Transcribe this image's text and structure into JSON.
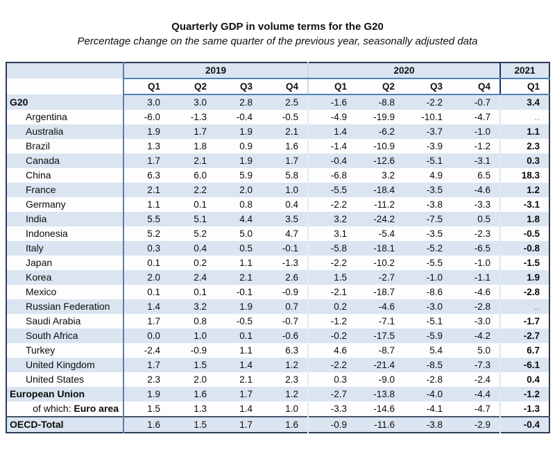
{
  "page": {
    "title": "Quarterly GDP in volume terms for the G20",
    "subtitle": "Percentage change on the same quarter of the previous year, seasonally adjusted data"
  },
  "colors": {
    "stripe_blue": "#dbe5f1",
    "stripe_white": "#fdfdfe",
    "header_line_blue": "#4f81bd",
    "outer_border": "#2b3a55",
    "year2021_separator": "#17375e",
    "total_rule": "#44546a",
    "text": "#0b0b0b",
    "missing_value_color": "#808080"
  },
  "chart_data": {
    "type": "table",
    "title": "Quarterly GDP in volume terms for the G20",
    "subtitle": "Percentage change on the same quarter of the previous year, seasonally adjusted data",
    "missing_symbol": "..",
    "column_groups": [
      {
        "year": "2019",
        "quarters": [
          "Q1",
          "Q2",
          "Q3",
          "Q4"
        ]
      },
      {
        "year": "2020",
        "quarters": [
          "Q1",
          "Q2",
          "Q3",
          "Q4"
        ]
      },
      {
        "year": "2021",
        "quarters": [
          "Q1"
        ]
      }
    ],
    "rows": [
      {
        "label": "G20",
        "emphasis": "bold",
        "values": [
          "3.0",
          "3.0",
          "2.8",
          "2.5",
          "-1.6",
          "-8.8",
          "-2.2",
          "-0.7",
          "3.4"
        ]
      },
      {
        "label": "Argentina",
        "emphasis": "normal",
        "values": [
          "-6.0",
          "-1.3",
          "-0.4",
          "-0.5",
          "-4.9",
          "-19.9",
          "-10.1",
          "-4.7",
          ".."
        ]
      },
      {
        "label": "Australia",
        "emphasis": "normal",
        "values": [
          "1.9",
          "1.7",
          "1.9",
          "2.1",
          "1.4",
          "-6.2",
          "-3.7",
          "-1.0",
          "1.1"
        ]
      },
      {
        "label": "Brazil",
        "emphasis": "normal",
        "values": [
          "1.3",
          "1.8",
          "0.9",
          "1.6",
          "-1.4",
          "-10.9",
          "-3.9",
          "-1.2",
          "2.3"
        ]
      },
      {
        "label": "Canada",
        "emphasis": "normal",
        "values": [
          "1.7",
          "2.1",
          "1.9",
          "1.7",
          "-0.4",
          "-12.6",
          "-5.1",
          "-3.1",
          "0.3"
        ]
      },
      {
        "label": "China",
        "emphasis": "normal",
        "values": [
          "6.3",
          "6.0",
          "5.9",
          "5.8",
          "-6.8",
          "3.2",
          "4.9",
          "6.5",
          "18.3"
        ]
      },
      {
        "label": "France",
        "emphasis": "normal",
        "values": [
          "2.1",
          "2.2",
          "2.0",
          "1.0",
          "-5.5",
          "-18.4",
          "-3.5",
          "-4.6",
          "1.2"
        ]
      },
      {
        "label": "Germany",
        "emphasis": "normal",
        "values": [
          "1.1",
          "0.1",
          "0.8",
          "0.4",
          "-2.2",
          "-11.2",
          "-3.8",
          "-3.3",
          "-3.1"
        ]
      },
      {
        "label": "India",
        "emphasis": "normal",
        "values": [
          "5.5",
          "5.1",
          "4.4",
          "3.5",
          "3.2",
          "-24.2",
          "-7.5",
          "0.5",
          "1.8"
        ]
      },
      {
        "label": "Indonesia",
        "emphasis": "normal",
        "values": [
          "5.2",
          "5.2",
          "5.0",
          "4.7",
          "3.1",
          "-5.4",
          "-3.5",
          "-2.3",
          "-0.5"
        ]
      },
      {
        "label": "Italy",
        "emphasis": "normal",
        "values": [
          "0.3",
          "0.4",
          "0.5",
          "-0.1",
          "-5.8",
          "-18.1",
          "-5.2",
          "-6.5",
          "-0.8"
        ]
      },
      {
        "label": "Japan",
        "emphasis": "normal",
        "values": [
          "0.1",
          "0.2",
          "1.1",
          "-1.3",
          "-2.2",
          "-10.2",
          "-5.5",
          "-1.0",
          "-1.5"
        ]
      },
      {
        "label": "Korea",
        "emphasis": "normal",
        "values": [
          "2.0",
          "2.4",
          "2.1",
          "2.6",
          "1.5",
          "-2.7",
          "-1.0",
          "-1.1",
          "1.9"
        ]
      },
      {
        "label": "Mexico",
        "emphasis": "normal",
        "values": [
          "0.1",
          "0.1",
          "-0.1",
          "-0.9",
          "-2.1",
          "-18.7",
          "-8.6",
          "-4.6",
          "-2.8"
        ]
      },
      {
        "label": "Russian Federation",
        "emphasis": "normal",
        "values": [
          "1.4",
          "3.2",
          "1.9",
          "0.7",
          "0.2",
          "-4.6",
          "-3.0",
          "-2.8",
          ".."
        ]
      },
      {
        "label": "Saudi Arabia",
        "emphasis": "normal",
        "values": [
          "1.7",
          "0.8",
          "-0.5",
          "-0.7",
          "-1.2",
          "-7.1",
          "-5.1",
          "-3.0",
          "-1.7"
        ]
      },
      {
        "label": "South Africa",
        "emphasis": "normal",
        "values": [
          "0.0",
          "1.0",
          "0.1",
          "-0.6",
          "-0.2",
          "-17.5",
          "-5.9",
          "-4.2",
          "-2.7"
        ]
      },
      {
        "label": "Turkey",
        "emphasis": "normal",
        "values": [
          "-2.4",
          "-0.9",
          "1.1",
          "6.3",
          "4.6",
          "-8.7",
          "5.4",
          "5.0",
          "6.7"
        ]
      },
      {
        "label": "United Kingdom",
        "emphasis": "normal",
        "values": [
          "1.7",
          "1.5",
          "1.4",
          "1.2",
          "-2.2",
          "-21.4",
          "-8.5",
          "-7.3",
          "-6.1"
        ]
      },
      {
        "label": "United States",
        "emphasis": "normal",
        "values": [
          "2.3",
          "2.0",
          "2.1",
          "2.3",
          "0.3",
          "-9.0",
          "-2.8",
          "-2.4",
          "0.4"
        ]
      },
      {
        "label": "European Union",
        "emphasis": "bold",
        "values": [
          "1.9",
          "1.6",
          "1.7",
          "1.2",
          "-2.7",
          "-13.8",
          "-4.0",
          "-4.4",
          "-1.2"
        ]
      },
      {
        "label": "Euro area",
        "label_prefix": "of which: ",
        "emphasis": "euro",
        "values": [
          "1.5",
          "1.3",
          "1.4",
          "1.0",
          "-3.3",
          "-14.6",
          "-4.1",
          "-4.7",
          "-1.3"
        ]
      },
      {
        "label": "OECD-Total",
        "emphasis": "bold",
        "top_border": true,
        "values": [
          "1.6",
          "1.5",
          "1.7",
          "1.6",
          "-0.9",
          "-11.6",
          "-3.8",
          "-2.9",
          "-0.4"
        ]
      }
    ]
  }
}
